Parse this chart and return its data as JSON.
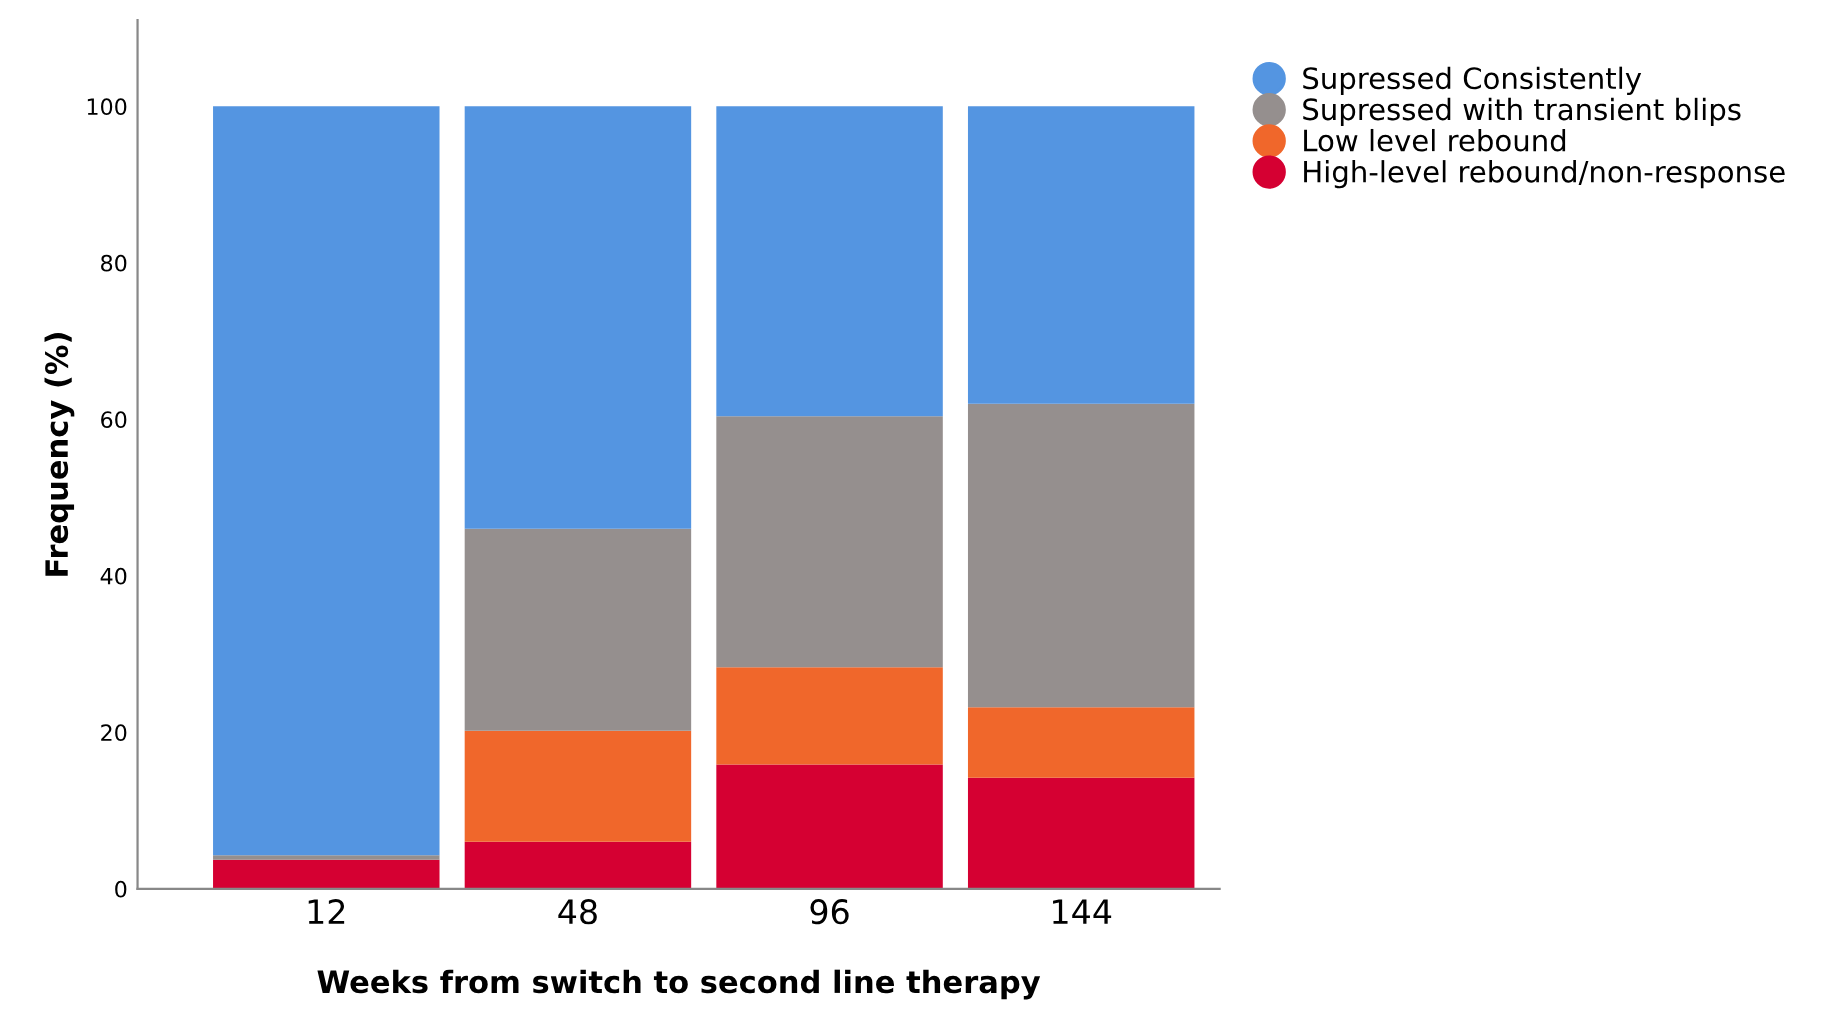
{
  "chart_data": {
    "type": "bar",
    "stacked": true,
    "xlabel": "Weeks from switch to second line therapy",
    "ylabel": "Frequency (%)",
    "categories": [
      "12",
      "48",
      "96",
      "144"
    ],
    "series": [
      {
        "name": "High-level rebound/non-response",
        "color": "#d50032",
        "values": [
          3.7,
          6.0,
          15.9,
          14.2
        ]
      },
      {
        "name": "Low level rebound",
        "color": "#f0672b",
        "values": [
          0,
          14.2,
          12.4,
          9.0
        ]
      },
      {
        "name": "Supressed with transient blips",
        "color": "#958f8e",
        "values": [
          0.6,
          25.8,
          32.1,
          38.8
        ]
      },
      {
        "name": "Supressed Consistently",
        "color": "#5495e1",
        "values": [
          95.7,
          54.0,
          39.6,
          38.0
        ]
      }
    ],
    "ylim": [
      0,
      111
    ],
    "yticks": [
      0,
      20,
      40,
      60,
      80,
      100
    ],
    "grid": false,
    "legend": "top right"
  }
}
